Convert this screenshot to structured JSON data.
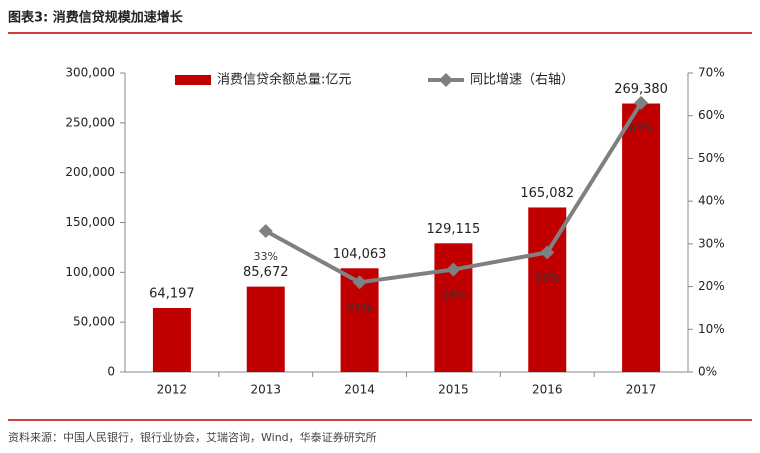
{
  "chart_data": {
    "type": "bar_line",
    "title": "图表3:  消费信贷规模加速增长",
    "source": "资料来源：中国人民银行，银行业协会，艾瑞咨询，Wind，华泰证券研究所",
    "categories": [
      "2012",
      "2013",
      "2014",
      "2015",
      "2016",
      "2017"
    ],
    "series": [
      {
        "name": "消费信贷余额总量:亿元",
        "type": "bar",
        "color": "#c00000",
        "values": [
          64197,
          85672,
          104063,
          129115,
          165082,
          269380
        ],
        "value_labels": [
          "64,197",
          "85,672",
          "104,063",
          "129,115",
          "165,082",
          "269,380"
        ]
      },
      {
        "name": "同比增速（右轴）",
        "type": "line",
        "axis": "y2",
        "color": "#808080",
        "values": [
          null,
          33,
          21,
          24,
          28,
          63
        ],
        "value_labels": [
          null,
          "33%",
          "21%",
          "24%",
          "28%",
          "63%"
        ]
      }
    ],
    "ylim": [
      0,
      300000
    ],
    "yticks": [
      0,
      {
        "value": 50000,
        "label": "50,000"
      },
      {
        "value": 100000,
        "label": "100,000"
      },
      {
        "value": 150000,
        "label": "150,000"
      },
      {
        "value": 200000,
        "label": "200,000"
      },
      {
        "value": 250000,
        "label": "250,000"
      },
      {
        "value": 300000,
        "label": "300,000"
      }
    ],
    "y2lim": [
      0,
      70
    ],
    "y2ticks": [
      {
        "value": 0,
        "label": "0%"
      },
      {
        "value": 10,
        "label": "10%"
      },
      {
        "value": 20,
        "label": "20%"
      },
      {
        "value": 30,
        "label": "30%"
      },
      {
        "value": 40,
        "label": "40%"
      },
      {
        "value": 50,
        "label": "50%"
      },
      {
        "value": 60,
        "label": "60%"
      },
      {
        "value": 70,
        "label": "70%"
      }
    ],
    "grid": false
  }
}
